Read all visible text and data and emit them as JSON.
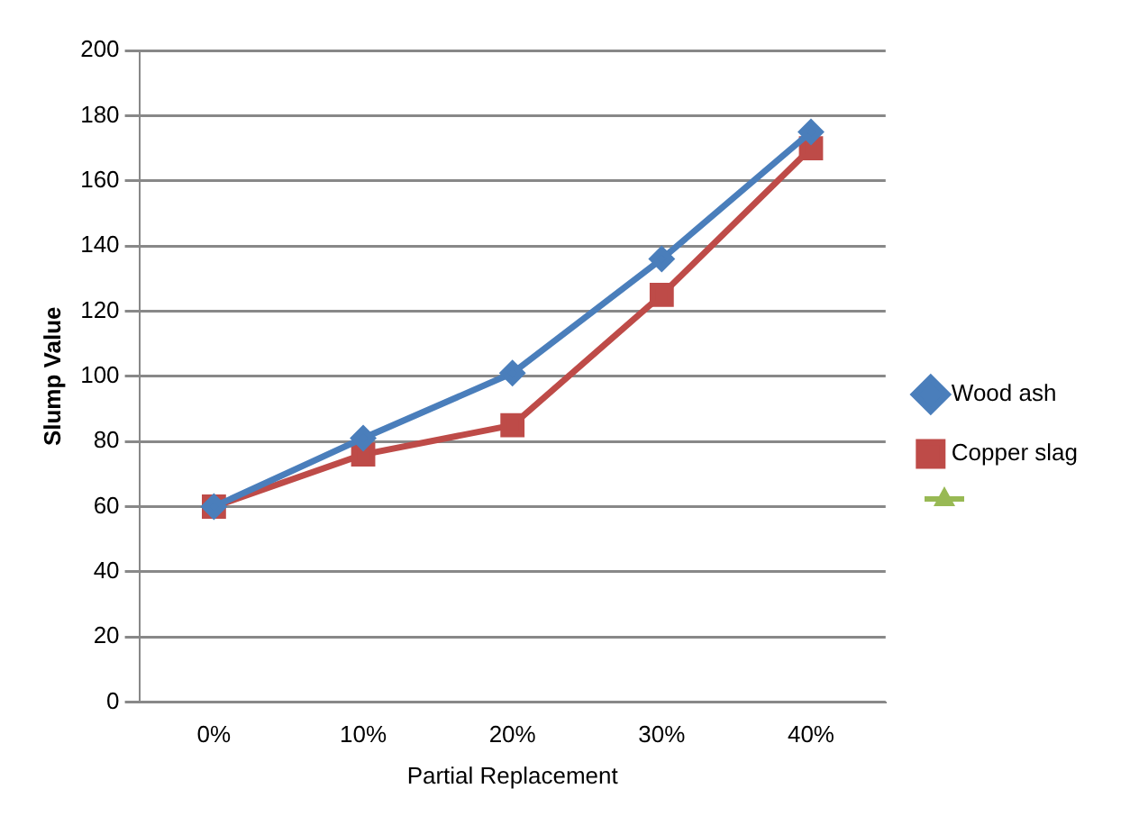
{
  "chart_data": {
    "type": "line",
    "xlabel": "Partial Replacement",
    "ylabel": "Slump Value",
    "categories": [
      "0%",
      "10%",
      "20%",
      "30%",
      "40%"
    ],
    "series": [
      {
        "name": "Wood ash",
        "color": "#4a7ebb",
        "marker": "diamond",
        "values": [
          60,
          81,
          101,
          136,
          175
        ]
      },
      {
        "name": "Copper slag",
        "color": "#be4b48",
        "marker": "square",
        "values": [
          60,
          76,
          85,
          125,
          170
        ]
      }
    ],
    "ylim": [
      0,
      200
    ],
    "yticks": [
      0,
      20,
      40,
      60,
      80,
      100,
      120,
      140,
      160,
      180,
      200
    ],
    "grid": "y",
    "legend": "right"
  }
}
